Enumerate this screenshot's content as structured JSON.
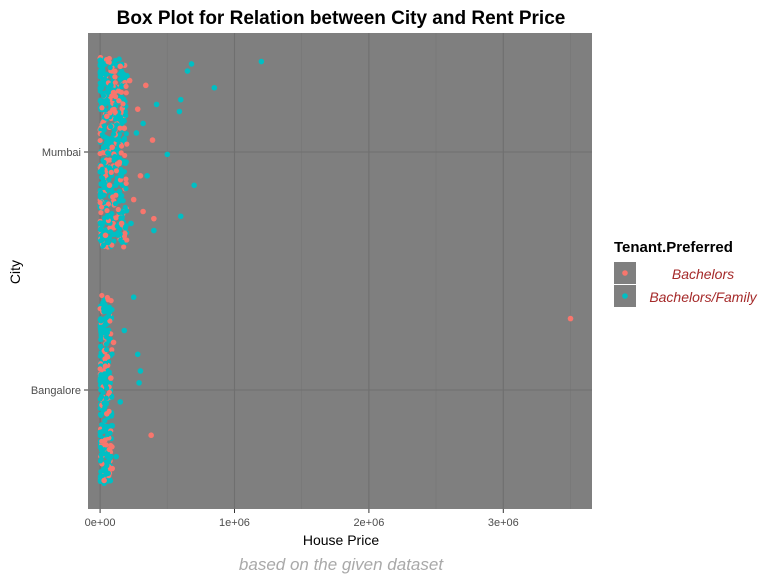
{
  "chart_data": {
    "type": "scatter",
    "title": "Box Plot for Relation between City and Rent Price",
    "xlabel": "House Price",
    "ylabel": "City",
    "caption": "based on the given dataset",
    "xlim": [
      -90000,
      3660000
    ],
    "x_ticks": [
      0,
      1000000,
      2000000,
      3000000
    ],
    "x_tick_labels": [
      "0e+00",
      "1e+06",
      "2e+06",
      "3e+06"
    ],
    "categories": [
      "Mumbai",
      "Bangalore"
    ],
    "grid": true,
    "panel_background": "#7f7f7f",
    "legend": {
      "title": "Tenant.Preferred",
      "placement": "right",
      "entries": [
        {
          "label": "Bachelors",
          "color": "#f8766d"
        },
        {
          "label": "Bachelors/Family",
          "color": "#00bfc4"
        }
      ]
    },
    "series": [
      {
        "name": "Bachelors",
        "color": "#f8766d",
        "points": [
          {
            "city": "Mumbai",
            "x": 60000,
            "offset": 0.38
          },
          {
            "city": "Mumbai",
            "x": 150000,
            "offset": 0.36
          },
          {
            "city": "Mumbai",
            "x": 220000,
            "offset": 0.3
          },
          {
            "city": "Mumbai",
            "x": 100000,
            "offset": 0.25
          },
          {
            "city": "Mumbai",
            "x": 340000,
            "offset": 0.28
          },
          {
            "city": "Mumbai",
            "x": 280000,
            "offset": 0.18
          },
          {
            "city": "Mumbai",
            "x": 50000,
            "offset": 0.15
          },
          {
            "city": "Mumbai",
            "x": 180000,
            "offset": 0.1
          },
          {
            "city": "Mumbai",
            "x": 390000,
            "offset": 0.05
          },
          {
            "city": "Mumbai",
            "x": 90000,
            "offset": 0.02
          },
          {
            "city": "Mumbai",
            "x": 130000,
            "offset": -0.05
          },
          {
            "city": "Mumbai",
            "x": 300000,
            "offset": -0.1
          },
          {
            "city": "Mumbai",
            "x": 70000,
            "offset": -0.14
          },
          {
            "city": "Mumbai",
            "x": 250000,
            "offset": -0.2
          },
          {
            "city": "Mumbai",
            "x": 400000,
            "offset": -0.28
          },
          {
            "city": "Mumbai",
            "x": 160000,
            "offset": -0.3
          },
          {
            "city": "Mumbai",
            "x": 40000,
            "offset": -0.35
          },
          {
            "city": "Mumbai",
            "x": 320000,
            "offset": -0.25
          },
          {
            "city": "Bangalore",
            "x": 3500000,
            "offset": 0.3
          },
          {
            "city": "Bangalore",
            "x": 60000,
            "offset": 0.38
          },
          {
            "city": "Bangalore",
            "x": 100000,
            "offset": 0.2
          },
          {
            "city": "Bangalore",
            "x": 40000,
            "offset": 0.1
          },
          {
            "city": "Bangalore",
            "x": 80000,
            "offset": 0.05
          },
          {
            "city": "Bangalore",
            "x": 50000,
            "offset": -0.1
          },
          {
            "city": "Bangalore",
            "x": 380000,
            "offset": -0.19
          },
          {
            "city": "Bangalore",
            "x": 70000,
            "offset": -0.25
          },
          {
            "city": "Bangalore",
            "x": 30000,
            "offset": -0.38
          },
          {
            "city": "Bangalore",
            "x": 90000,
            "offset": -0.33
          }
        ]
      },
      {
        "name": "Bachelors/Family",
        "color": "#00bfc4",
        "points": [
          {
            "city": "Mumbai",
            "x": 1200000,
            "offset": 0.38
          },
          {
            "city": "Mumbai",
            "x": 680000,
            "offset": 0.37
          },
          {
            "city": "Mumbai",
            "x": 650000,
            "offset": 0.34
          },
          {
            "city": "Mumbai",
            "x": 850000,
            "offset": 0.27
          },
          {
            "city": "Mumbai",
            "x": 600000,
            "offset": 0.22
          },
          {
            "city": "Mumbai",
            "x": 590000,
            "offset": 0.17
          },
          {
            "city": "Mumbai",
            "x": 420000,
            "offset": 0.2
          },
          {
            "city": "Mumbai",
            "x": 500000,
            "offset": -0.01
          },
          {
            "city": "Mumbai",
            "x": 700000,
            "offset": -0.14
          },
          {
            "city": "Mumbai",
            "x": 600000,
            "offset": -0.27
          },
          {
            "city": "Mumbai",
            "x": 400000,
            "offset": -0.33
          },
          {
            "city": "Mumbai",
            "x": 350000,
            "offset": -0.1
          },
          {
            "city": "Mumbai",
            "x": 270000,
            "offset": 0.08
          },
          {
            "city": "Mumbai",
            "x": 200000,
            "offset": 0.32
          },
          {
            "city": "Mumbai",
            "x": 320000,
            "offset": 0.12
          },
          {
            "city": "Mumbai",
            "x": 150000,
            "offset": -0.2
          },
          {
            "city": "Mumbai",
            "x": 230000,
            "offset": -0.3
          },
          {
            "city": "Mumbai",
            "x": 80000,
            "offset": 0.28
          },
          {
            "city": "Mumbai",
            "x": 110000,
            "offset": -0.02
          },
          {
            "city": "Mumbai",
            "x": 60000,
            "offset": -0.38
          },
          {
            "city": "Bangalore",
            "x": 250000,
            "offset": 0.39
          },
          {
            "city": "Bangalore",
            "x": 280000,
            "offset": 0.15
          },
          {
            "city": "Bangalore",
            "x": 290000,
            "offset": 0.03
          },
          {
            "city": "Bangalore",
            "x": 180000,
            "offset": 0.25
          },
          {
            "city": "Bangalore",
            "x": 300000,
            "offset": 0.08
          },
          {
            "city": "Bangalore",
            "x": 150000,
            "offset": -0.05
          },
          {
            "city": "Bangalore",
            "x": 120000,
            "offset": -0.28
          },
          {
            "city": "Bangalore",
            "x": 60000,
            "offset": -0.35
          },
          {
            "city": "Bangalore",
            "x": 30000,
            "offset": 0.33
          },
          {
            "city": "Bangalore",
            "x": 90000,
            "offset": -0.15
          }
        ]
      }
    ]
  }
}
